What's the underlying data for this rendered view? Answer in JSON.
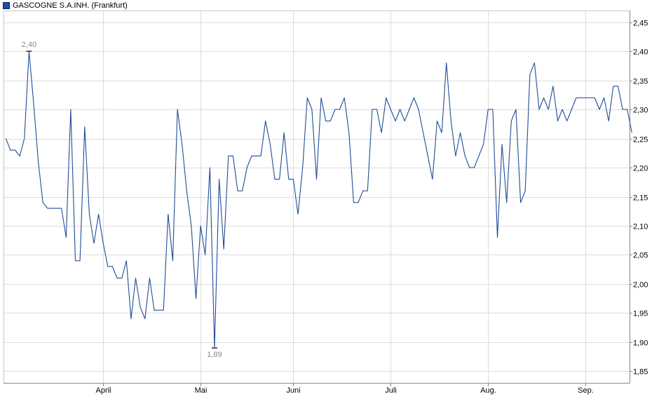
{
  "chart_data": {
    "type": "line",
    "legend": "GASCOGNE S.A.INH. (Frankfurt)",
    "series_color": "#1f4e96",
    "grid": true,
    "ylim": [
      1.83,
      2.47
    ],
    "y_ticks": [
      "2,45",
      "2,40",
      "2,35",
      "2,30",
      "2,25",
      "2,20",
      "2,15",
      "2,10",
      "2,05",
      "2,00",
      "1,95",
      "1,90",
      "1,85"
    ],
    "y_tick_values": [
      2.45,
      2.4,
      2.35,
      2.3,
      2.25,
      2.2,
      2.15,
      2.1,
      2.05,
      2.0,
      1.95,
      1.9,
      1.85
    ],
    "x_ticks": [
      "April",
      "Mai",
      "Juni",
      "Juli",
      "Aug.",
      "Sep."
    ],
    "x_tick_index": [
      21,
      42,
      62,
      83,
      104,
      125
    ],
    "n_points": 135,
    "annotations": [
      {
        "label": "2,40",
        "index": 5,
        "value": 2.4,
        "type": "max"
      },
      {
        "label": "1,89",
        "index": 45,
        "value": 1.89,
        "type": "min"
      }
    ],
    "values": [
      2.25,
      2.23,
      2.23,
      2.22,
      2.25,
      2.4,
      2.31,
      2.21,
      2.14,
      2.13,
      2.13,
      2.13,
      2.13,
      2.08,
      2.3,
      2.04,
      2.04,
      2.27,
      2.12,
      2.07,
      2.12,
      2.07,
      2.03,
      2.03,
      2.01,
      2.01,
      2.04,
      1.94,
      2.01,
      1.96,
      1.94,
      2.01,
      1.955,
      1.955,
      1.955,
      2.12,
      2.04,
      2.3,
      2.24,
      2.16,
      2.1,
      1.975,
      2.1,
      2.05,
      2.2,
      1.89,
      2.18,
      2.06,
      2.22,
      2.22,
      2.16,
      2.16,
      2.2,
      2.22,
      2.22,
      2.22,
      2.28,
      2.24,
      2.18,
      2.18,
      2.26,
      2.18,
      2.18,
      2.12,
      2.2,
      2.32,
      2.3,
      2.18,
      2.32,
      2.28,
      2.28,
      2.3,
      2.3,
      2.32,
      2.26,
      2.14,
      2.14,
      2.16,
      2.16,
      2.3,
      2.3,
      2.26,
      2.32,
      2.3,
      2.28,
      2.3,
      2.28,
      2.3,
      2.32,
      2.3,
      2.26,
      2.22,
      2.18,
      2.28,
      2.26,
      2.38,
      2.28,
      2.22,
      2.26,
      2.22,
      2.2,
      2.2,
      2.22,
      2.24,
      2.3,
      2.3,
      2.08,
      2.24,
      2.14,
      2.28,
      2.3,
      2.14,
      2.16,
      2.36,
      2.38,
      2.3,
      2.32,
      2.3,
      2.34,
      2.28,
      2.3,
      2.28,
      2.3,
      2.32,
      2.32,
      2.32,
      2.32,
      2.32,
      2.3,
      2.32,
      2.28,
      2.34,
      2.34,
      2.3,
      2.3,
      2.26
    ]
  }
}
